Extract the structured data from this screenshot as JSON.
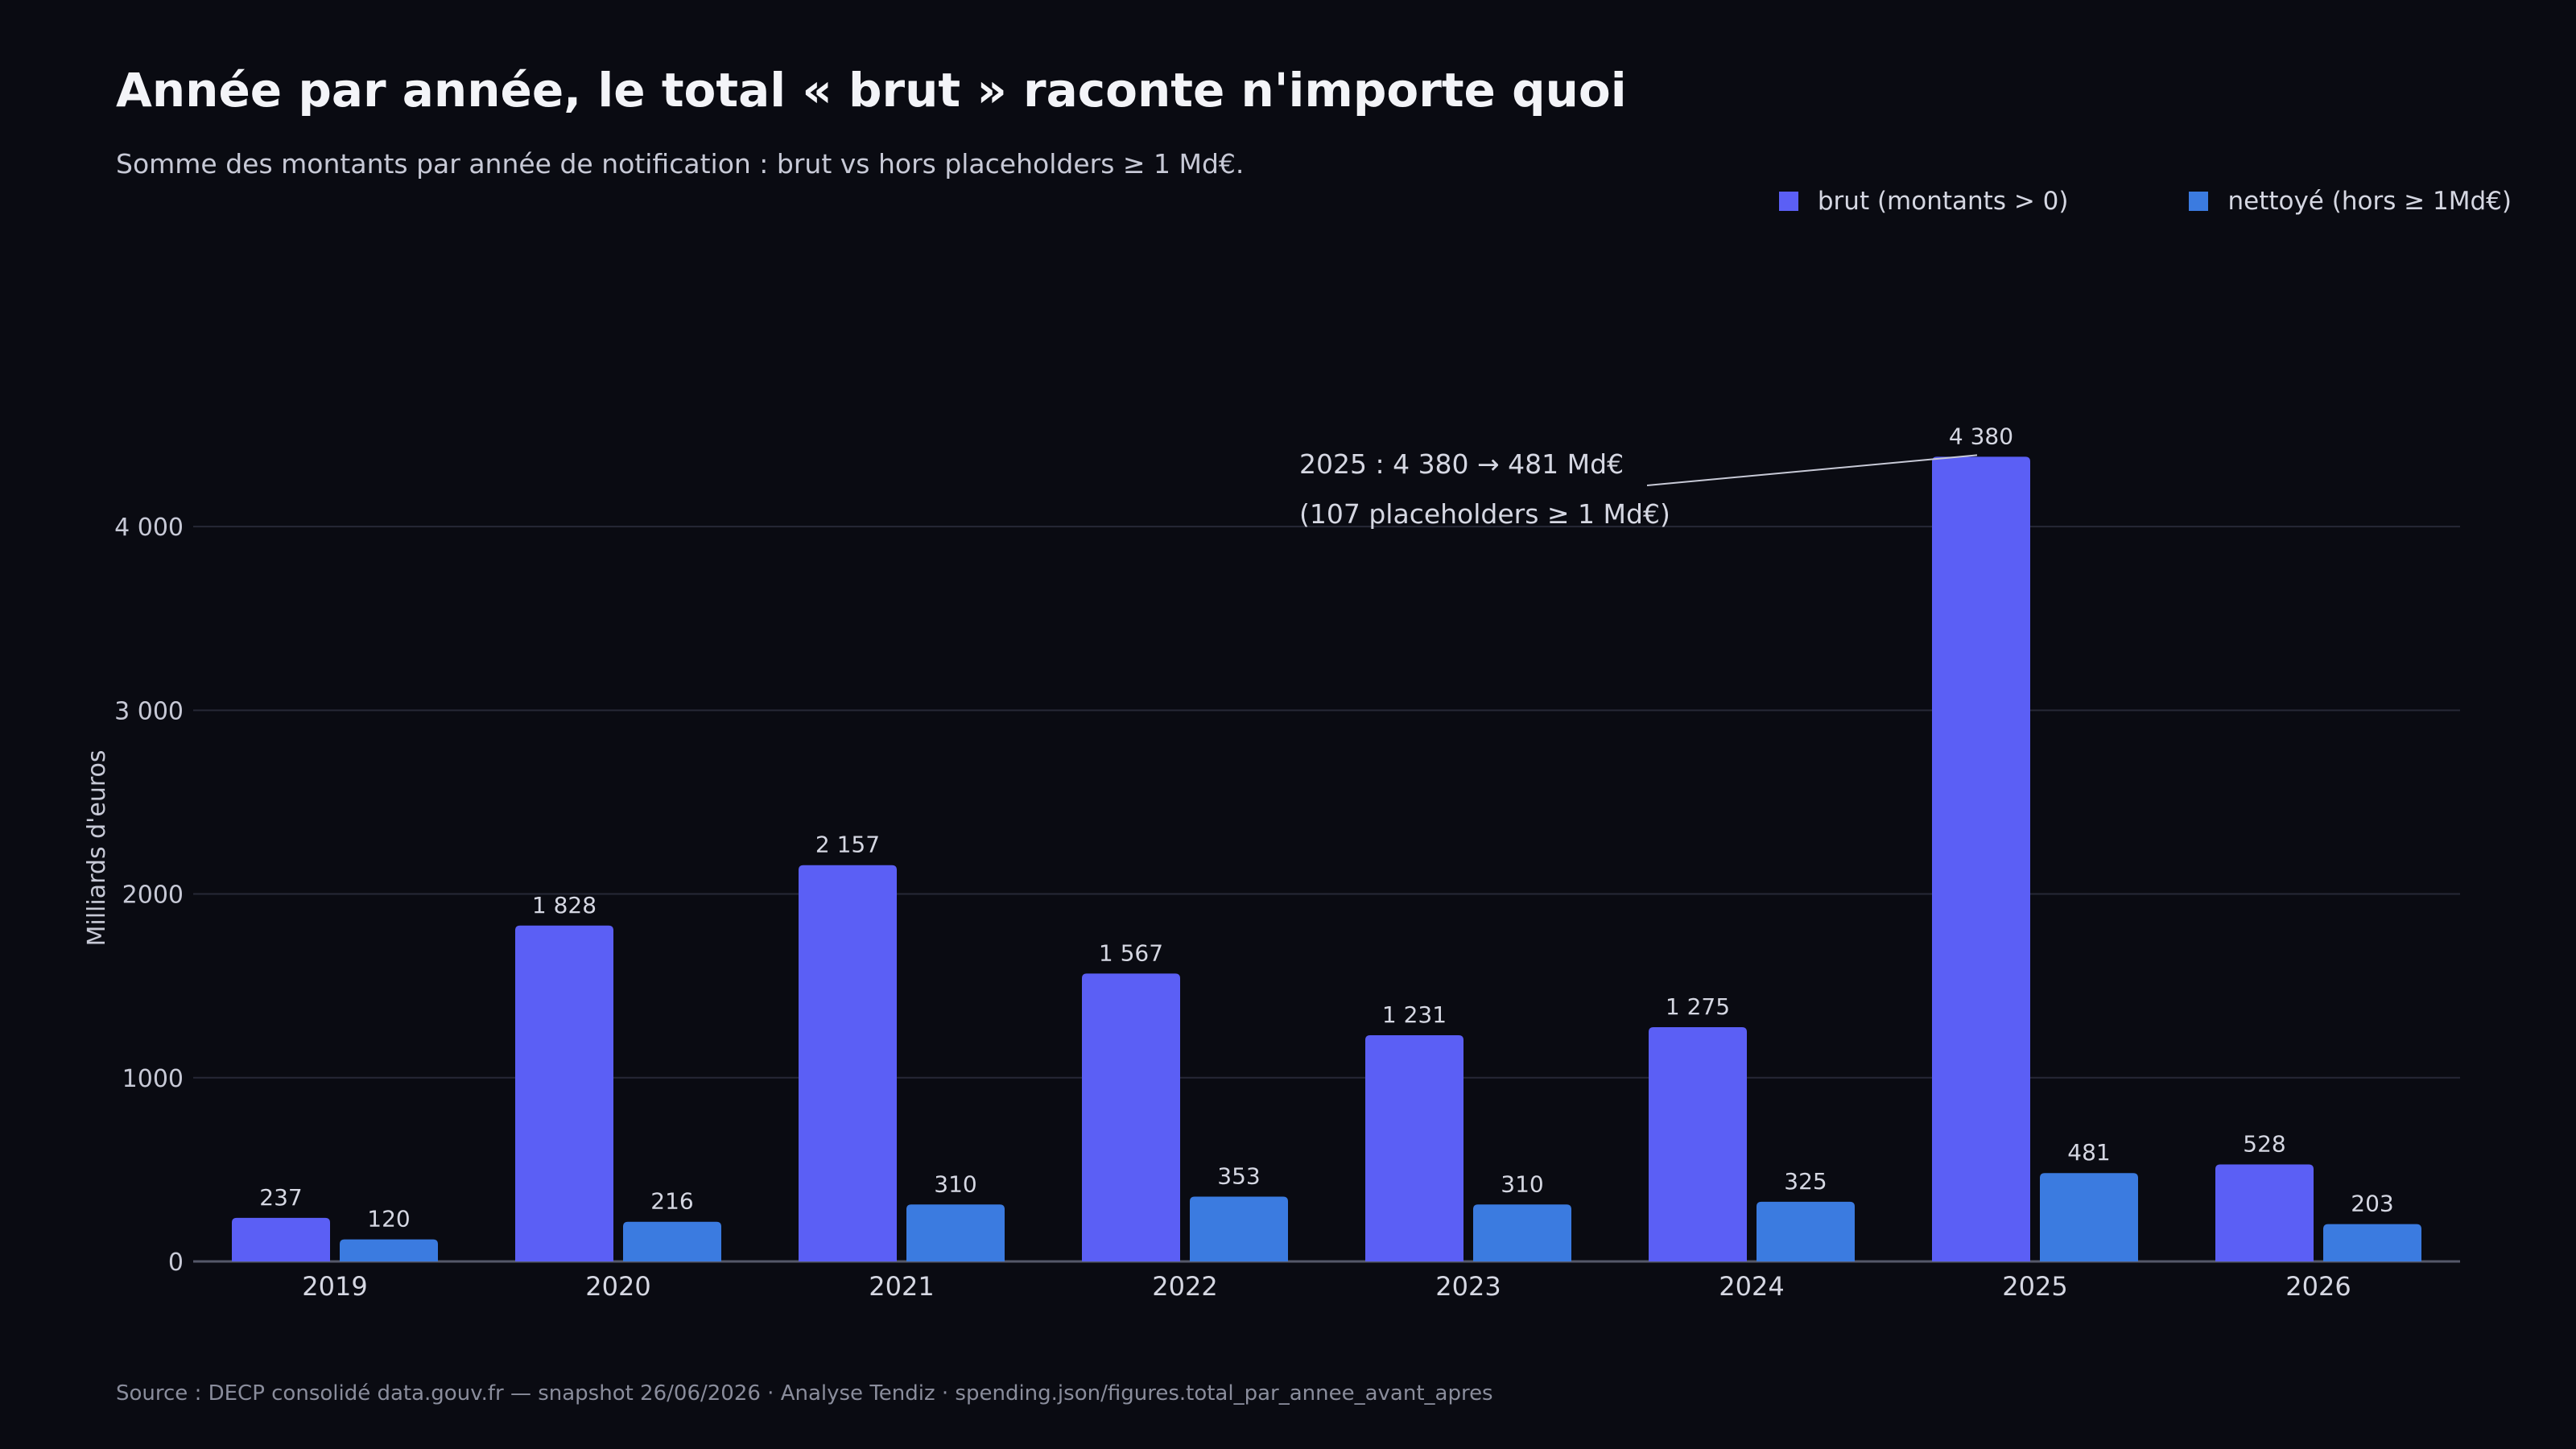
{
  "title": "Année par année, le total « brut » raconte n'importe quoi",
  "subtitle": "Somme des montants par année de notification : brut vs hors placeholders ≥ 1 Md€.",
  "source": "Source : DECP consolidé data.gouv.fr — snapshot 26/06/2026 · Analyse Tendiz  ·  spending.json/figures.total_par_annee_avant_apres",
  "colors": {
    "background": "#0a0b12",
    "brut": "#5b5ff5",
    "nettoye": "#3b7be0",
    "grid": "#262836",
    "axis": "#555869",
    "text": "#d5d7e2"
  },
  "chart_data": {
    "type": "bar",
    "ylabel": "Milliards d'euros",
    "xlabel": "",
    "ylim": [
      0,
      4500
    ],
    "yticks": [
      0,
      1000,
      2000,
      3000,
      4000
    ],
    "ytick_labels": [
      "0",
      "1000",
      "2000",
      "3 000",
      "4 000"
    ],
    "grid": true,
    "legend_position": "top-right",
    "categories": [
      "2019",
      "2020",
      "2021",
      "2022",
      "2023",
      "2024",
      "2025",
      "2026"
    ],
    "series": [
      {
        "name": "brut (montants > 0)",
        "values": [
          237,
          1828,
          2157,
          1567,
          1231,
          1275,
          4380,
          528
        ],
        "labels": [
          "237",
          "1 828",
          "2 157",
          "1 567",
          "1 231",
          "1 275",
          "4 380",
          "528"
        ]
      },
      {
        "name": "nettoyé (hors ≥ 1Md€)",
        "values": [
          120,
          216,
          310,
          353,
          310,
          325,
          481,
          203
        ],
        "labels": [
          "120",
          "216",
          "310",
          "353",
          "310",
          "325",
          "481",
          "203"
        ]
      }
    ],
    "annotation": {
      "category": "2025",
      "series": 0,
      "line1": "2025 : 4 380 → 481 Md€",
      "line2": "(107 placeholders ≥ 1 Md€)"
    }
  }
}
